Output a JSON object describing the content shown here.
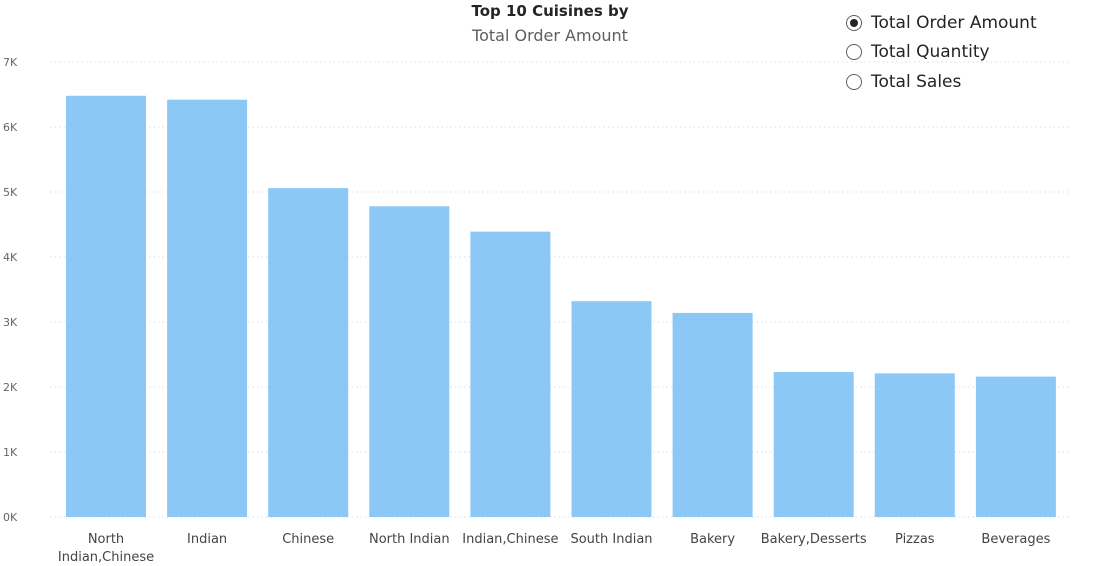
{
  "chart_data": {
    "type": "bar",
    "title": "Top 10 Cuisines by",
    "subtitle": "Total Order Amount",
    "xlabel": "",
    "ylabel": "",
    "ylim": [
      0,
      7000
    ],
    "yticks": [
      0,
      1000,
      2000,
      3000,
      4000,
      5000,
      6000,
      7000
    ],
    "ytick_labels": [
      "0K",
      "1K",
      "2K",
      "3K",
      "4K",
      "5K",
      "6K",
      "7K"
    ],
    "grid": true,
    "categories": [
      "North Indian,Chinese",
      "Indian",
      "Chinese",
      "North Indian",
      "Indian,Chinese",
      "South Indian",
      "Bakery",
      "Bakery,Desserts",
      "Pizzas",
      "Beverages"
    ],
    "category_lines": [
      [
        "North",
        "Indian,Chinese"
      ],
      [
        "Indian"
      ],
      [
        "Chinese"
      ],
      [
        "North Indian"
      ],
      [
        "Indian,Chinese"
      ],
      [
        "South Indian"
      ],
      [
        "Bakery"
      ],
      [
        "Bakery,Desserts"
      ],
      [
        "Pizzas"
      ],
      [
        "Beverages"
      ]
    ],
    "series": [
      {
        "values": [
          6480,
          6420,
          5060,
          4780,
          4390,
          3320,
          3140,
          2230,
          2210,
          2160
        ]
      }
    ],
    "bar_color": "#8cc8f5",
    "grid_color": "#dddddd"
  },
  "legend": {
    "options": [
      {
        "label": "Total Order Amount",
        "selected": true
      },
      {
        "label": "Total Quantity",
        "selected": false
      },
      {
        "label": "Total Sales",
        "selected": false
      }
    ]
  }
}
